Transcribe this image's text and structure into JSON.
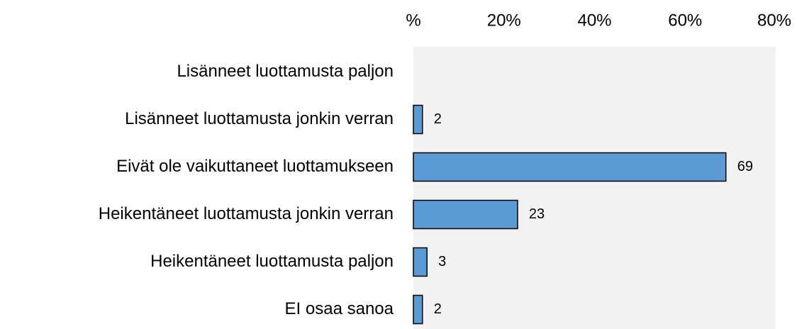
{
  "chart_data": {
    "type": "barh",
    "categories": [
      "Lisänneet luottamusta paljon",
      "Lisänneet luottamusta jonkin verran",
      "Eivät ole vaikuttaneet luottamukseen",
      "Heikentäneet luottamusta jonkin verran",
      "Heikentäneet luottamusta paljon",
      "EI osaa sanoa"
    ],
    "values": [
      0,
      2,
      69,
      23,
      3,
      2
    ],
    "value_labels": [
      null,
      "2",
      "69",
      "23",
      "3",
      "2"
    ],
    "color": "#5b9bd5",
    "xlim": [
      0,
      80
    ],
    "xticks": [
      {
        "value": 0,
        "label": "%"
      },
      {
        "value": 20,
        "label": "20%"
      },
      {
        "value": 40,
        "label": "40%"
      },
      {
        "value": 60,
        "label": "60%"
      },
      {
        "value": 80,
        "label": "80%"
      }
    ]
  }
}
